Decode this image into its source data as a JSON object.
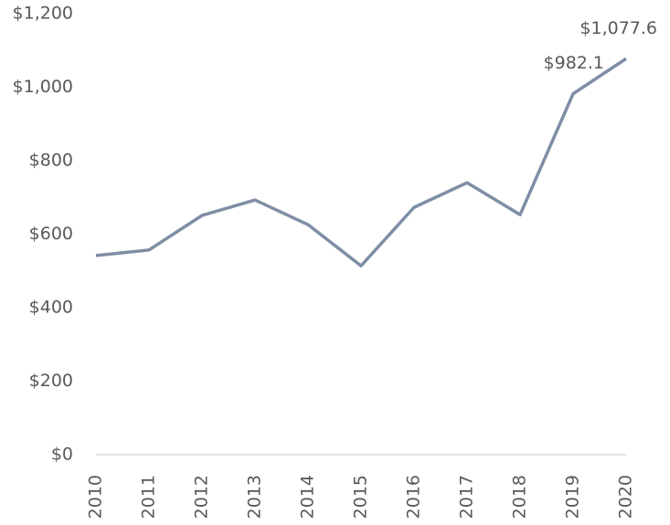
{
  "chart_data": {
    "type": "line",
    "categories": [
      "2010",
      "2011",
      "2012",
      "2013",
      "2014",
      "2015",
      "2016",
      "2017",
      "2018",
      "2019",
      "2020"
    ],
    "series": [
      {
        "color": "#7f8ea5",
        "values": [
          542,
          557,
          651,
          693,
          626,
          514,
          673,
          740,
          653,
          982.1,
          1077.6
        ],
        "value_labels": [
          null,
          null,
          null,
          null,
          null,
          null,
          null,
          null,
          null,
          "$982.1",
          "$1,077.6"
        ]
      }
    ],
    "ylim": [
      0,
      1200
    ],
    "yticks": [
      {
        "value": 0,
        "label": "$0"
      },
      {
        "value": 200,
        "label": "$200"
      },
      {
        "value": 400,
        "label": "$400"
      },
      {
        "value": 600,
        "label": "$600"
      },
      {
        "value": 800,
        "label": "$800"
      },
      {
        "value": 1000,
        "label": "$1,000"
      },
      {
        "value": 1200,
        "label": "$1,200"
      }
    ],
    "grid": false
  }
}
